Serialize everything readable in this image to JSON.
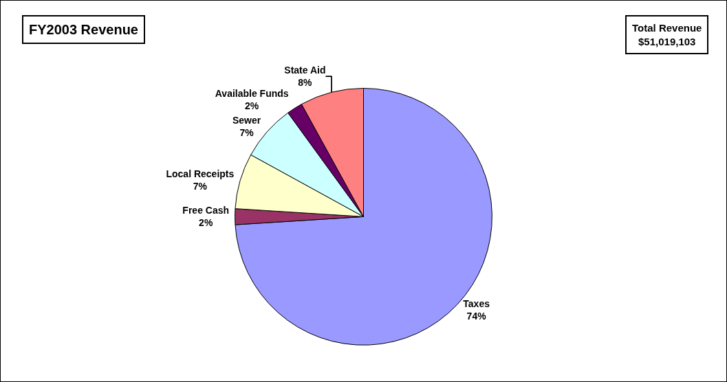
{
  "chart_data": {
    "type": "pie",
    "title": "FY2003 Revenue",
    "annotations": [
      "Total Revenue\n$51,019,103"
    ],
    "categories": [
      "Taxes",
      "Free Cash",
      "Local Receipts",
      "Sewer",
      "Available Funds",
      "State Aid"
    ],
    "values": [
      74,
      2,
      7,
      7,
      2,
      8
    ],
    "value_labels": [
      "74%",
      "2%",
      "7%",
      "7%",
      "2%",
      "8%"
    ],
    "colors": [
      "#9999ff",
      "#993366",
      "#ffffcc",
      "#ccffff",
      "#660066",
      "#ff8080"
    ],
    "legend": false
  }
}
